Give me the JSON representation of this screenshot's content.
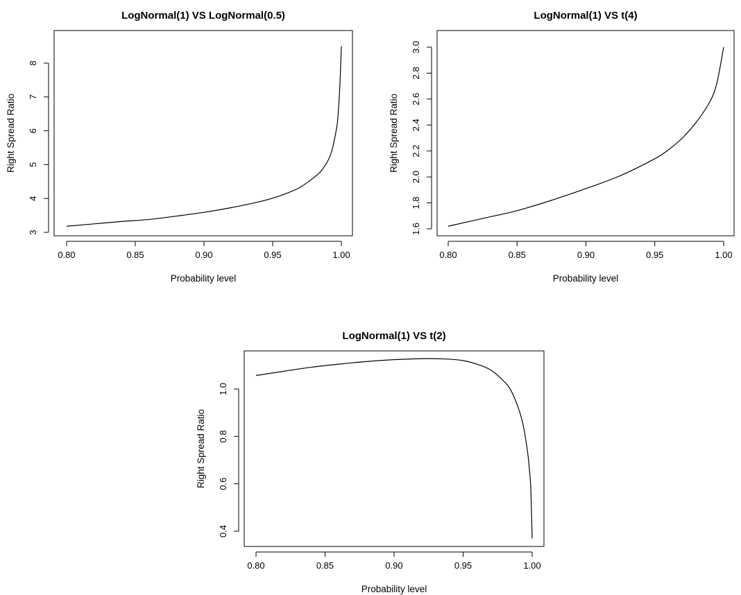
{
  "chart_data": [
    {
      "type": "line",
      "title": "LogNormal(1) VS LogNormal(0.5)",
      "xlabel": "Probability level",
      "ylabel": "Right Spread Ratio",
      "xlim": [
        0.8,
        1.0
      ],
      "ylim": [
        3.0,
        8.5
      ],
      "xticks": [
        "0.80",
        "0.85",
        "0.90",
        "0.95",
        "1.00"
      ],
      "yticks": [
        "3",
        "4",
        "5",
        "6",
        "7",
        "8"
      ],
      "ytick_orientation": "vertical",
      "series": [
        {
          "x": [
            0.8,
            0.82,
            0.84,
            0.86,
            0.88,
            0.9,
            0.92,
            0.94,
            0.95,
            0.96,
            0.97,
            0.98,
            0.985,
            0.99,
            0.993,
            0.995,
            0.997,
            0.998,
            0.999,
            1.0
          ],
          "values": [
            3.18,
            3.25,
            3.32,
            3.38,
            3.48,
            3.59,
            3.73,
            3.9,
            4.01,
            4.15,
            4.33,
            4.62,
            4.8,
            5.1,
            5.4,
            5.75,
            6.2,
            6.7,
            7.4,
            8.5
          ]
        }
      ]
    },
    {
      "type": "line",
      "title": "LogNormal(1) VS t(4)",
      "xlabel": "Probability level",
      "ylabel": "Right Spread Ratio",
      "xlim": [
        0.8,
        1.0
      ],
      "ylim": [
        1.6,
        3.0
      ],
      "xticks": [
        "0.80",
        "0.85",
        "0.90",
        "0.95",
        "1.00"
      ],
      "yticks": [
        "1.6",
        "1.8",
        "2.0",
        "2.2",
        "2.4",
        "2.6",
        "2.8",
        "3.0"
      ],
      "ytick_orientation": "vertical",
      "series": [
        {
          "x": [
            0.8,
            0.825,
            0.85,
            0.875,
            0.9,
            0.925,
            0.95,
            0.96,
            0.97,
            0.98,
            0.99,
            0.995,
            1.0
          ],
          "values": [
            1.62,
            1.68,
            1.74,
            1.82,
            1.91,
            2.01,
            2.14,
            2.21,
            2.3,
            2.42,
            2.58,
            2.72,
            3.0
          ]
        }
      ]
    },
    {
      "type": "line",
      "title": "LogNormal(1) VS t(2)",
      "xlabel": "Probability level",
      "ylabel": "Right Spread Ratio",
      "xlim": [
        0.8,
        1.0
      ],
      "ylim": [
        0.38,
        1.13
      ],
      "xticks": [
        "0.80",
        "0.85",
        "0.90",
        "0.95",
        "1.00"
      ],
      "yticks": [
        "0.4",
        "0.6",
        "0.8",
        "1.0"
      ],
      "ytick_orientation": "vertical",
      "series": [
        {
          "x": [
            0.8,
            0.82,
            0.84,
            0.86,
            0.88,
            0.9,
            0.92,
            0.93,
            0.94,
            0.95,
            0.96,
            0.97,
            0.98,
            0.985,
            0.99,
            0.993,
            0.995,
            0.997,
            0.998,
            0.999,
            1.0
          ],
          "values": [
            1.057,
            1.075,
            1.092,
            1.105,
            1.116,
            1.124,
            1.128,
            1.128,
            1.126,
            1.12,
            1.105,
            1.08,
            1.03,
            0.99,
            0.92,
            0.86,
            0.8,
            0.72,
            0.66,
            0.58,
            0.37
          ]
        }
      ]
    }
  ]
}
